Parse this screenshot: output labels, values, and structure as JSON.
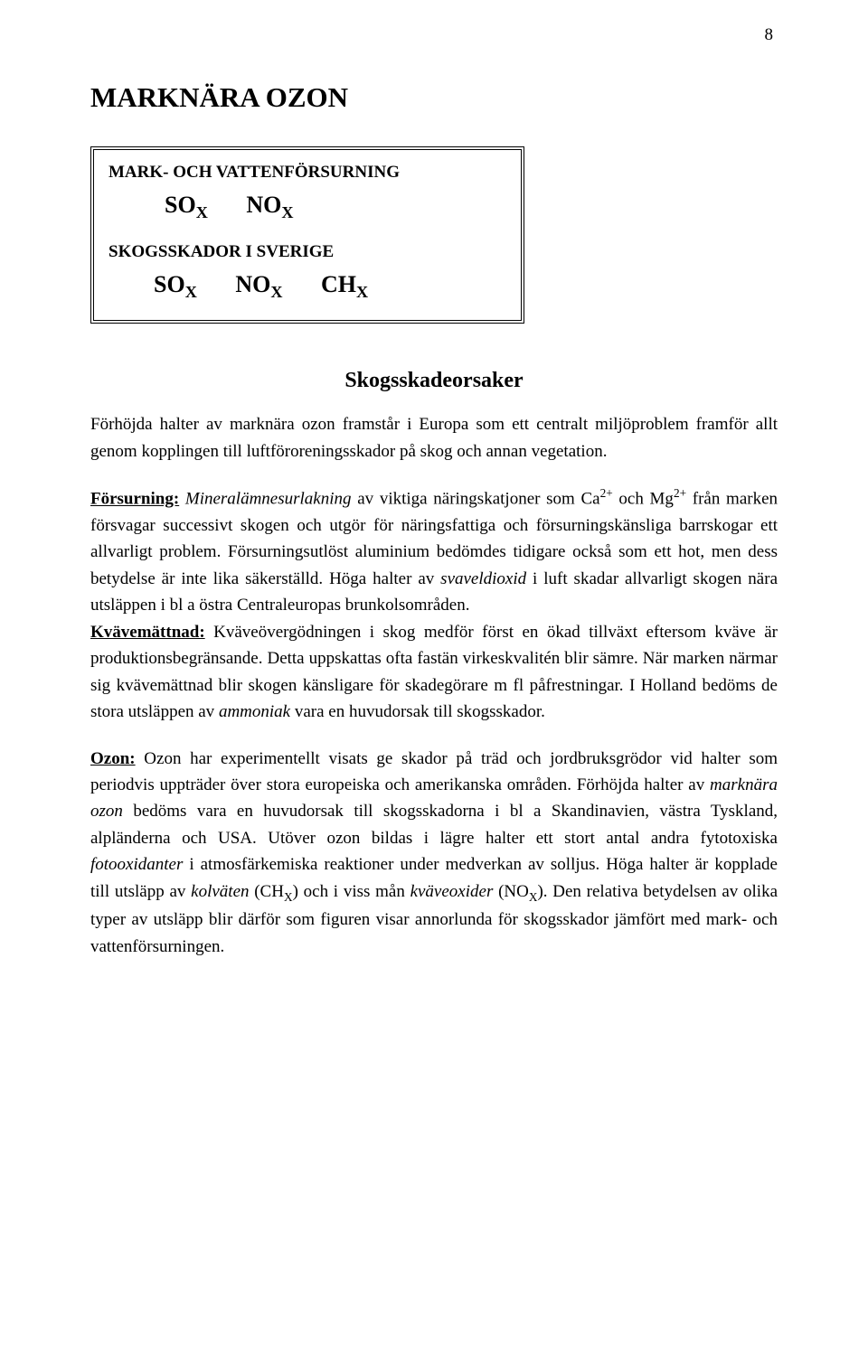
{
  "page_number": "8",
  "title": "MARKNÄRA OZON",
  "box": {
    "heading1": "MARK- OCH VATTENFÖRSURNING",
    "row1": {
      "so": "SO",
      "sox_sub": "X",
      "no": "NO",
      "nox_sub": "X"
    },
    "heading2": "SKOGSSKADOR I SVERIGE",
    "row2": {
      "so": "SO",
      "sox_sub": "X",
      "no": "NO",
      "nox_sub": "X",
      "ch": "CH",
      "chx_sub": "X"
    }
  },
  "section_heading": "Skogsskadeorsaker",
  "paragraphs": {
    "p1": "Förhöjda halter av marknära ozon framstår i Europa som ett centralt miljöproblem framför allt genom kopplingen till luftföroreningsskador på skog och annan vegetation.",
    "p2": {
      "label": "Försurning:",
      "t1": " ",
      "t2": "Mineralämnesurlakning",
      "t3": " av viktiga näringskatjoner som Ca",
      "sup1": "2+",
      "t4": " och Mg",
      "sup2": "2+",
      "t5": " från marken försvagar successivt skogen och utgör för näringsfattiga och försurningskänsliga barrskogar ett allvarligt problem. Försurningsutlöst aluminium bedömdes tidigare också som ett hot, men dess betydelse är inte lika säkerställd. Höga halter av ",
      "t6": "svaveldioxid",
      "t7": " i luft skadar allvarligt skogen nära utsläppen i bl a östra Centraleuropas brunkolsområden."
    },
    "p3": {
      "label": "Kvävemättnad:",
      "t1": " Kväveövergödningen i skog medför först en ökad tillväxt eftersom kväve är produktionsbegränsande. Detta uppskattas ofta fastän virkeskvalitén blir sämre. När marken närmar sig kvävemättnad blir skogen känsligare för skadegörare m fl påfrestningar. I Holland bedöms de stora utsläppen av ",
      "t2": "ammoniak",
      "t3": " vara en huvudorsak till skogsskador."
    },
    "p4": {
      "label": "Ozon:",
      "t1": " Ozon har experimentellt visats ge skador på träd och jordbruksgrödor vid halter som periodvis uppträder över stora europeiska och amerikanska områden. Förhöjda halter av ",
      "t2": "marknära ozon",
      "t3": " bedöms vara en huvudorsak till skogsskadorna i bl a Skandinavien, västra Tyskland, alpländerna och USA. Utöver ozon bildas i lägre halter ett stort antal andra fytotoxiska ",
      "t4": "fotooxidanter",
      "t5": " i atmosfärkemiska reaktioner under medverkan av solljus.  Höga halter är kopplade till utsläpp av ",
      "t6": "kolväten",
      "t7": " (CH",
      "sub1": "X",
      "t8": ") och i viss mån ",
      "t9": "kväveoxider",
      "t10": " (NO",
      "sub2": "X",
      "t11": "). Den relativa betydelsen av olika typer av utsläpp blir därför som figuren visar annorlunda för skogsskador jämfört med mark- och vattenförsurningen."
    }
  },
  "colors": {
    "text": "#000000",
    "background": "#ffffff"
  },
  "typography": {
    "family": "Times New Roman",
    "body_pt": 14,
    "title_pt": 24
  }
}
